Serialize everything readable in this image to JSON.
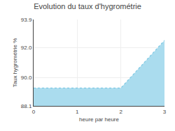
{
  "chart_data": {
    "type": "area",
    "title": "Evolution du taux d'hygrométrie",
    "xlabel": "heure par heure",
    "ylabel": "Taux hygrométrie %",
    "x": [
      0,
      2,
      3
    ],
    "values": [
      89.3,
      89.3,
      92.5
    ],
    "color": "#aadcee",
    "line_style": "dotted",
    "xlim": [
      0,
      3
    ],
    "ylim": [
      88.1,
      93.9
    ],
    "xticks": [
      0,
      1,
      2,
      3
    ],
    "yticks": [
      88.1,
      {
        "value": 90,
        "label": "90.0"
      },
      {
        "value": 92,
        "label": "92.0"
      },
      93.9
    ],
    "grid": true
  }
}
